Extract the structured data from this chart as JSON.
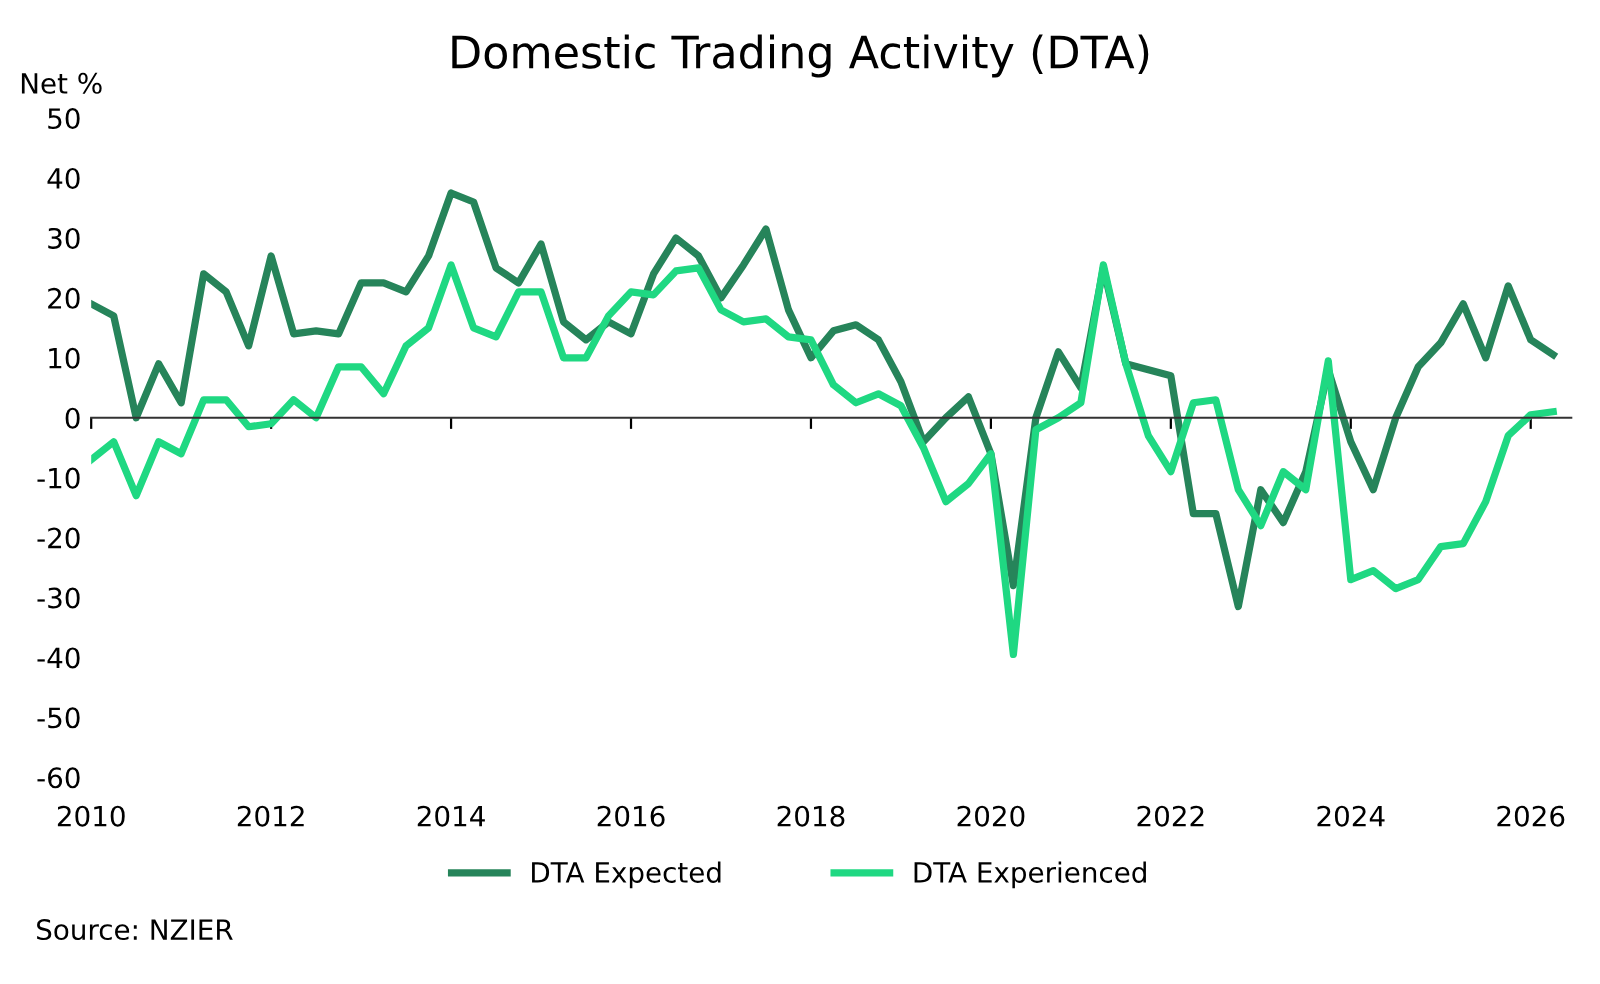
{
  "chart_data": {
    "type": "line",
    "title": "Domestic Trading Activity (DTA)",
    "ylabel": "Net %",
    "x": [
      2010,
      2010.25,
      2010.5,
      2010.75,
      2011,
      2011.25,
      2011.5,
      2011.75,
      2012,
      2012.25,
      2012.5,
      2012.75,
      2013,
      2013.25,
      2013.5,
      2013.75,
      2014,
      2014.25,
      2014.5,
      2014.75,
      2015,
      2015.25,
      2015.5,
      2015.75,
      2016,
      2016.25,
      2016.5,
      2016.75,
      2017,
      2017.25,
      2017.5,
      2017.75,
      2018,
      2018.25,
      2018.5,
      2018.75,
      2019,
      2019.25,
      2019.5,
      2019.75,
      2020,
      2020.25,
      2020.5,
      2020.75,
      2021,
      2021.25,
      2021.5,
      2021.75,
      2022,
      2022.25,
      2022.5,
      2022.75,
      2023,
      2023.25,
      2023.5,
      2023.75,
      2024,
      2024.25,
      2024.5,
      2024.75,
      2025,
      2025.25,
      2025.5,
      2025.75,
      2026,
      2026.25
    ],
    "series": [
      {
        "name": "DTA Expected",
        "color": "#26845a",
        "values": [
          19,
          17,
          0,
          9,
          2.5,
          24,
          21,
          12,
          27,
          14,
          14.5,
          14,
          22.5,
          22.5,
          21,
          27,
          37.5,
          36,
          25,
          22.5,
          29,
          16,
          13,
          16,
          14,
          24,
          30,
          27,
          20,
          25.5,
          31.5,
          18,
          10,
          14.5,
          15.5,
          13,
          6,
          -4,
          0,
          3.5,
          -6,
          -28,
          0,
          11,
          5,
          25,
          9,
          8,
          7,
          -16,
          -16,
          -31.5,
          -12,
          -17.5,
          -9,
          8,
          -4,
          -12,
          0,
          8.5,
          12.5,
          19,
          10,
          22,
          13,
          10.5
        ]
      },
      {
        "name": "DTA Experienced",
        "color": "#1fd882",
        "values": [
          -7,
          -4,
          -13,
          -4,
          -6,
          3,
          3,
          -1.5,
          -1,
          3,
          0,
          8.5,
          8.5,
          4,
          12,
          15,
          25.5,
          15,
          13.5,
          21,
          21,
          10,
          10,
          17,
          21,
          20.5,
          24.5,
          25,
          18,
          16,
          16.5,
          13.5,
          13,
          5.5,
          2.5,
          4,
          2,
          -5,
          -14,
          -11,
          -6,
          -39.5,
          -2,
          0,
          2.5,
          25.5,
          9,
          -3,
          -9,
          2.5,
          3,
          -12,
          -18,
          -9,
          -12,
          9.5,
          -27,
          -25.5,
          -28.5,
          -27,
          -21.5,
          -21,
          -14,
          -3,
          0.5,
          1
        ]
      }
    ],
    "xlim": [
      2010,
      2026.45
    ],
    "xticks": [
      2010,
      2012,
      2014,
      2016,
      2018,
      2020,
      2022,
      2024,
      2026
    ],
    "ylim": [
      -60,
      50
    ],
    "yticks": [
      -60,
      -50,
      -40,
      -30,
      -20,
      -10,
      0,
      10,
      20,
      30,
      40,
      50
    ],
    "legend": "bottom",
    "marker": "none",
    "line_style": "solid",
    "annotations": [
      "Source: NZIER"
    ]
  }
}
